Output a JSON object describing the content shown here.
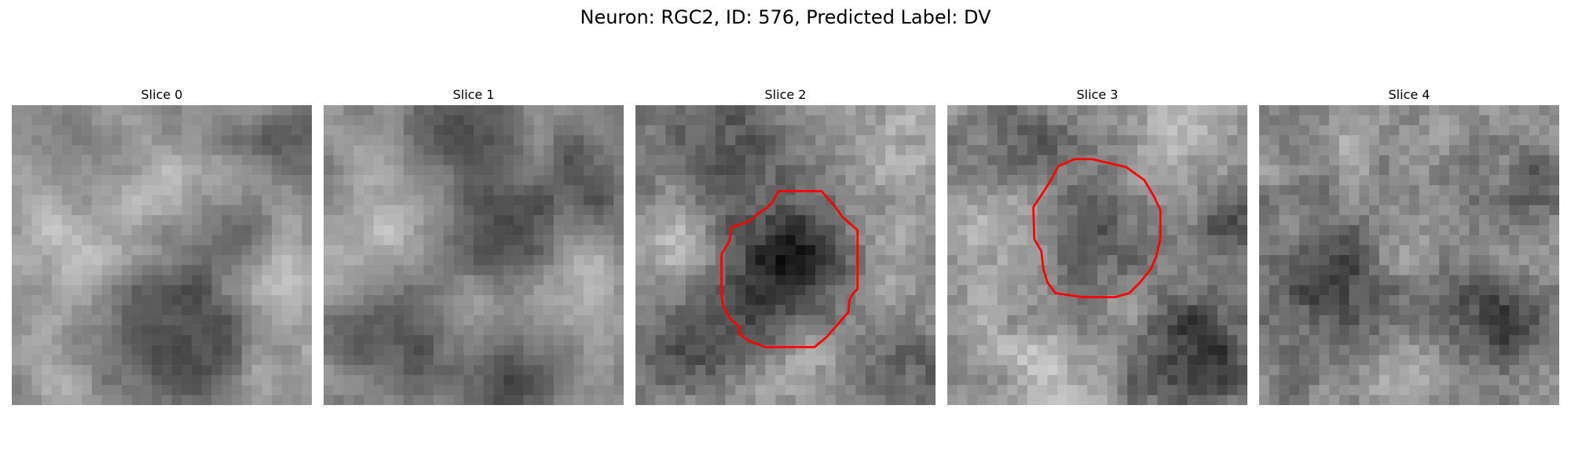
{
  "title": "Neuron: RGC2, ID: 576, Predicted Label: DV",
  "colormap": "gray",
  "contour_color": "#ff0000",
  "panels": [
    {
      "title": "Slice 0",
      "has_contour": false
    },
    {
      "title": "Slice 1",
      "has_contour": false
    },
    {
      "title": "Slice 2",
      "has_contour": true
    },
    {
      "title": "Slice 3",
      "has_contour": true
    },
    {
      "title": "Slice 4",
      "has_contour": false
    }
  ]
}
